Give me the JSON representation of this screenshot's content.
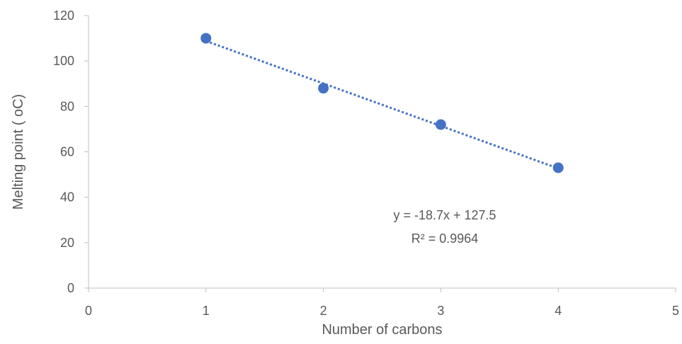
{
  "chart_data": {
    "type": "scatter",
    "title": "",
    "xlabel": "Number of carbons",
    "ylabel": "Melting point ( oC)",
    "xlim": [
      0,
      5
    ],
    "ylim": [
      0,
      120
    ],
    "x_ticks": [
      0,
      1,
      2,
      3,
      4,
      5
    ],
    "y_ticks": [
      0,
      20,
      40,
      60,
      80,
      100,
      120
    ],
    "grid": false,
    "legend": "none",
    "series": [
      {
        "x": [
          1,
          2,
          3,
          4
        ],
        "y": [
          110,
          88,
          72,
          53
        ],
        "color": "#4472C4",
        "marker": "circle"
      }
    ],
    "trendline": {
      "type": "linear",
      "slope": -18.7,
      "intercept": 127.5,
      "x_range": [
        1,
        4
      ],
      "style": "dotted",
      "color": "#4472C4",
      "equation_text": "y = -18.7x + 127.5",
      "r2_text": "R² = 0.9964"
    },
    "axis_color": "#BFBFBF",
    "text_color": "#595959"
  }
}
